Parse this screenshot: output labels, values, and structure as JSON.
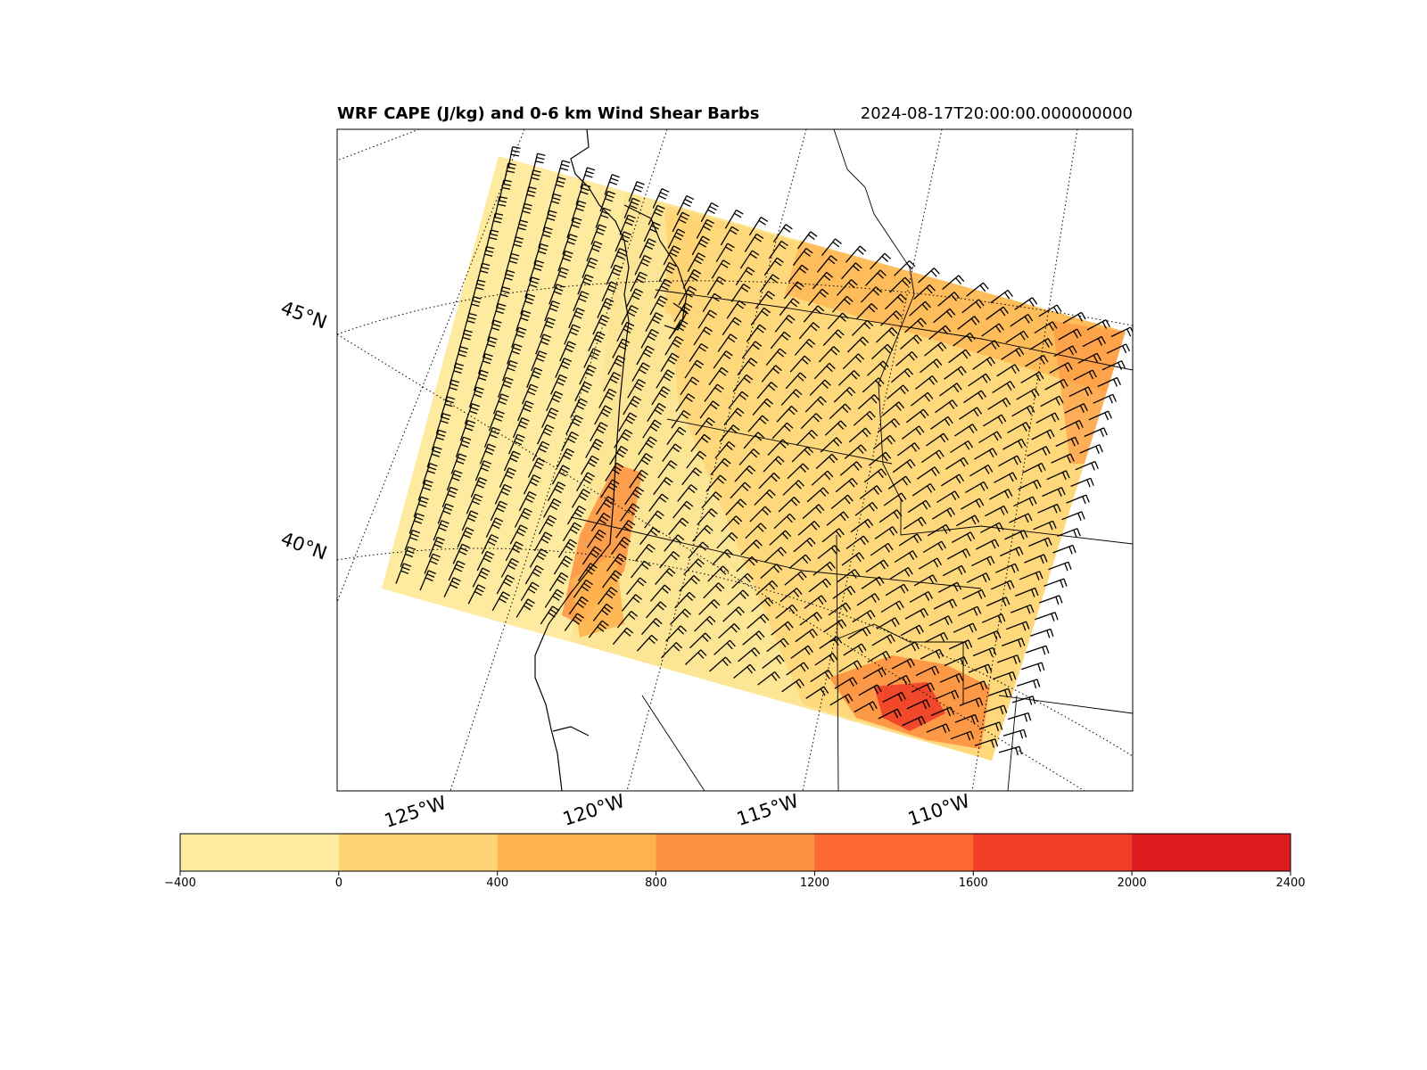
{
  "title": "WRF CAPE (J/kg) and 0-6 km Wind Shear Barbs",
  "timestamp": "2024-08-17T20:00:00.000000000",
  "lat_labels": [
    "45°N",
    "40°N"
  ],
  "lon_labels": [
    "125°W",
    "120°W",
    "115°W",
    "110°W"
  ],
  "colorbar": {
    "ticks": [
      "−400",
      "0",
      "400",
      "800",
      "1200",
      "1600",
      "2000",
      "2400"
    ],
    "colors": [
      "#feeb9f",
      "#fed474",
      "#feb34f",
      "#fd9240",
      "#fc6932",
      "#f03e27",
      "#dd1c1f"
    ]
  },
  "colors": {
    "cape_low": "#feeb9f",
    "cape_mid": "#fed474",
    "cape_high": "#fd9240",
    "cape_max": "#f03e27"
  }
}
